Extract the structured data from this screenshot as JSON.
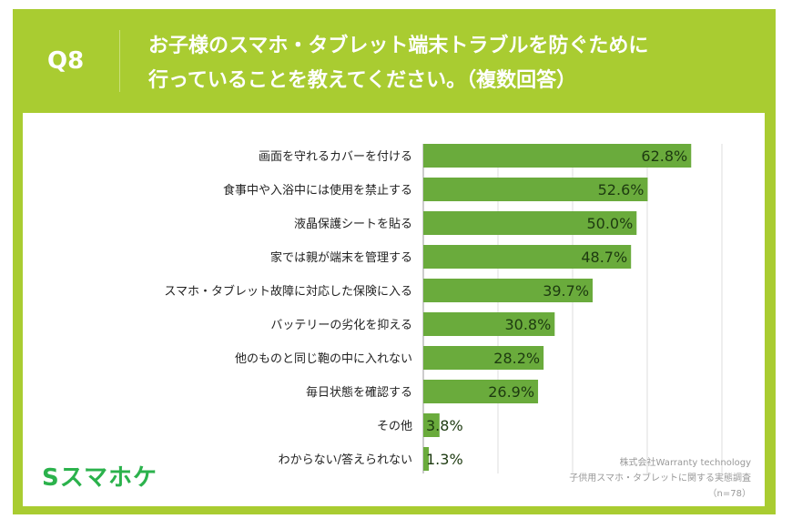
{
  "header": {
    "q_label": "Q8",
    "title_line1": "お子様のスマホ・タブレット端末トラブルを防ぐために",
    "title_line2": "行っていることを教えてください。（複数回答）"
  },
  "footer": {
    "company": "株式会社Warranty technology",
    "survey": "子供用スマホ・タブレットに関する実態調査",
    "sample": "（n=78）"
  },
  "logo": {
    "text": "Sスマホケ",
    "color": "#2bb24c"
  },
  "colors": {
    "frame": "#a9cc31",
    "bar": "#6aab3c"
  },
  "chart_data": {
    "type": "bar",
    "orientation": "horizontal",
    "title": "",
    "xlabel": "",
    "ylabel": "",
    "xlim": [
      0,
      70
    ],
    "grid": true,
    "unit": "%",
    "categories": [
      "画面を守れるカバーを付ける",
      "食事中や入浴中には使用を禁止する",
      "液晶保護シートを貼る",
      "家では親が端末を管理する",
      "スマホ・タブレット故障に対応した保険に入る",
      "バッテリーの劣化を抑える",
      "他のものと同じ鞄の中に入れない",
      "毎日状態を確認する",
      "その他",
      "わからない/答えられない"
    ],
    "values": [
      62.8,
      52.6,
      50.0,
      48.7,
      39.7,
      30.8,
      28.2,
      26.9,
      3.8,
      1.3
    ],
    "labels": [
      "62.8%",
      "52.6%",
      "50.0%",
      "48.7%",
      "39.7%",
      "30.8%",
      "28.2%",
      "26.9%",
      "3.8%",
      "1.3%"
    ]
  }
}
